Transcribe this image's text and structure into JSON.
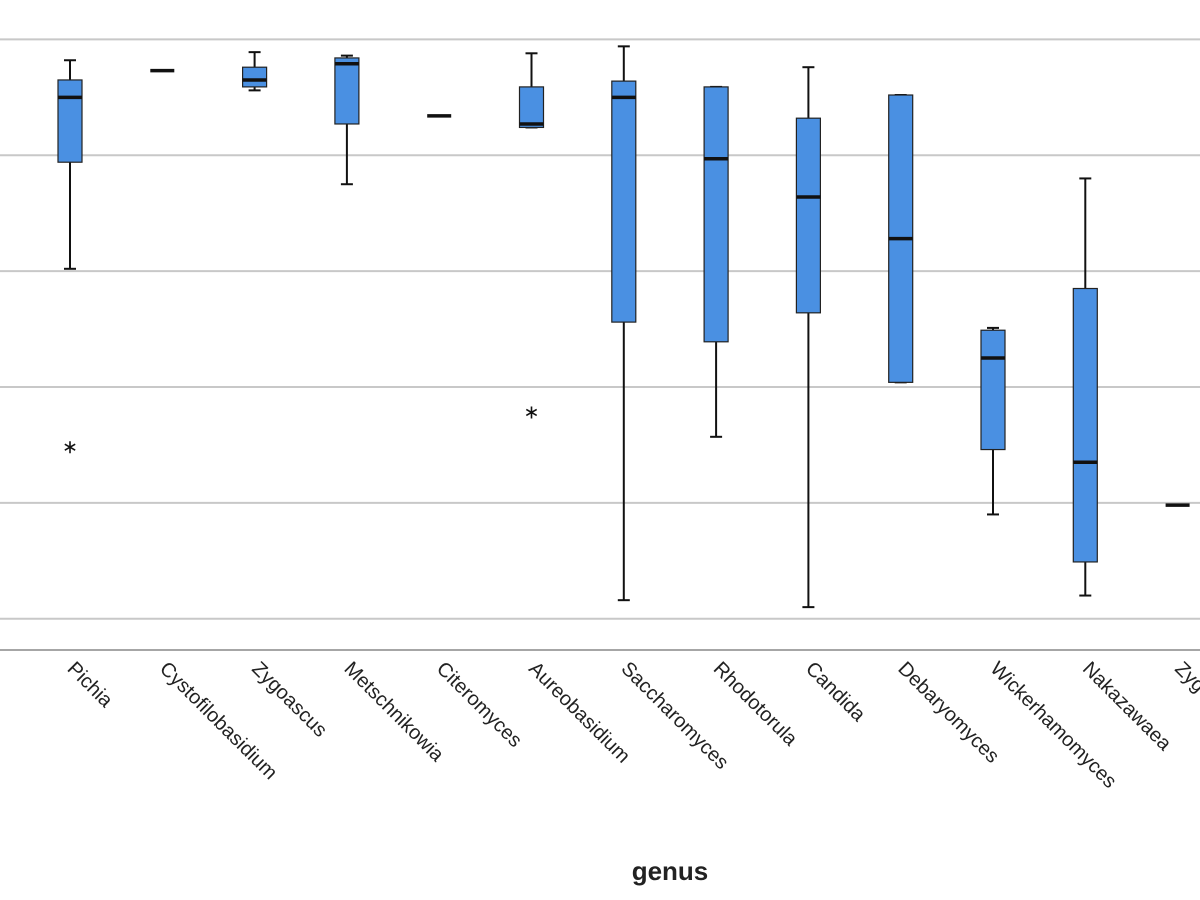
{
  "chart_data": {
    "type": "box",
    "x_label": "genus",
    "categories": [
      "Pichia",
      "Cystofilobasidium",
      "Zygoascus",
      "Metschnikowia",
      "Citeromyces",
      "Aureobasidium",
      "Saccharomyces",
      "Rhodotorula",
      "Candida",
      "Debaryomyces",
      "Wickerhamomyces",
      "Nakazawaea",
      "Zyg"
    ],
    "whisker_low": [
      3.02,
      4.73,
      4.56,
      3.75,
      4.34,
      4.24,
      0.16,
      1.57,
      0.1,
      2.04,
      0.9,
      0.2,
      0.98
    ],
    "q1": [
      3.94,
      4.73,
      4.59,
      4.27,
      4.34,
      4.24,
      2.56,
      2.39,
      2.64,
      2.04,
      1.46,
      0.49,
      0.98
    ],
    "median": [
      4.5,
      4.73,
      4.65,
      4.79,
      4.34,
      4.27,
      4.5,
      3.97,
      3.64,
      3.28,
      2.25,
      1.35,
      0.98
    ],
    "q3": [
      4.65,
      4.73,
      4.76,
      4.84,
      4.34,
      4.59,
      4.64,
      4.59,
      4.32,
      4.52,
      2.49,
      2.85,
      0.98
    ],
    "whisker_high": [
      4.82,
      4.73,
      4.89,
      4.86,
      4.34,
      4.88,
      4.94,
      4.59,
      4.76,
      4.52,
      2.51,
      3.8,
      0.98
    ],
    "outliers": [
      [
        1.48
      ],
      [],
      [],
      [],
      [],
      [
        1.78
      ],
      [],
      [],
      [],
      [],
      [],
      [],
      []
    ],
    "color": "#4a90e2",
    "ylim": [
      -0.27,
      5.34
    ],
    "yticks": [
      0,
      1,
      2,
      3,
      4,
      5
    ],
    "grid": true
  }
}
